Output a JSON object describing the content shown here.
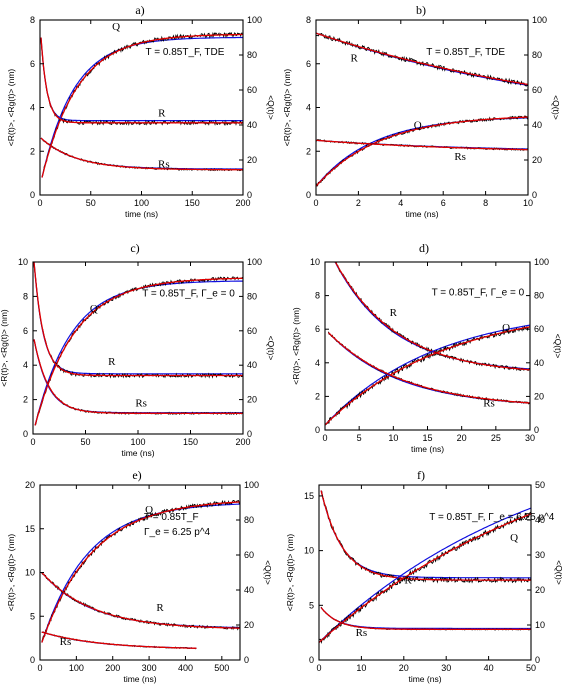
{
  "colors": {
    "data": "#000000",
    "fit": "#e00000",
    "model": "#1010e0",
    "frame": "#000000"
  },
  "chart_data": [
    {
      "panel": "a)",
      "type": "line",
      "xlabel": "time (ns)",
      "ylabel": "<R(t)>, <Rg(t)> (nm)",
      "y2label": "<Q(t)>",
      "xlim": [
        0,
        200
      ],
      "ylim": [
        0,
        8
      ],
      "y2lim": [
        0,
        100
      ],
      "xticks": [
        0,
        50,
        100,
        150,
        200
      ],
      "yticks": [
        0,
        2,
        4,
        6,
        8
      ],
      "y2ticks": [
        0,
        20,
        40,
        60,
        80,
        100
      ],
      "annotation": "T = 0.85T_F, TDE",
      "curve_labels": [
        {
          "text": "Q",
          "x": 75,
          "y": 105,
          "axis": "y2"
        },
        {
          "text": "R",
          "x": 120,
          "y": 3.6,
          "axis": "y"
        },
        {
          "text": "Rs",
          "x": 122,
          "y": 1.25,
          "axis": "y"
        }
      ],
      "series": [
        {
          "label": "Q",
          "axis": "y2",
          "kind": "noisy",
          "model": "rise",
          "t0": 2,
          "y0": 10,
          "yinf": 92,
          "tau": 35,
          "noise": 1.2,
          "xmax": 200
        },
        {
          "label": "R",
          "axis": "y",
          "kind": "noisy",
          "model": "decay",
          "t0": 1,
          "y0": 7.2,
          "yinf": 3.3,
          "tau": 6,
          "noise": 0.08,
          "xmax": 200
        },
        {
          "label": "Rs",
          "axis": "y",
          "kind": "noisy",
          "model": "decay",
          "t0": 1,
          "y0": 2.6,
          "yinf": 1.15,
          "tau": 35,
          "noise": 0.04,
          "xmax": 200
        }
      ]
    },
    {
      "panel": "b)",
      "type": "line",
      "xlabel": "time (ns)",
      "ylabel": "<R(t)>, <Rg(t)> (nm)",
      "y2label": "<Q(t)>",
      "xlim": [
        0,
        10
      ],
      "ylim": [
        0,
        8
      ],
      "y2lim": [
        0,
        100
      ],
      "xticks": [
        0,
        2,
        4,
        6,
        8,
        10
      ],
      "yticks": [
        0,
        2,
        4,
        6,
        8
      ],
      "y2ticks": [
        0,
        20,
        40,
        60,
        80,
        100
      ],
      "annotation": "T = 0.85T_F, TDE",
      "curve_labels": [
        {
          "text": "R",
          "x": 1.8,
          "y": 6.1,
          "axis": "y"
        },
        {
          "text": "Q",
          "x": 4.8,
          "y": 38,
          "axis": "y2"
        },
        {
          "text": "Rs",
          "x": 6.8,
          "y": 1.6,
          "axis": "y"
        }
      ],
      "series": [
        {
          "label": "R",
          "axis": "y",
          "kind": "noisy",
          "model": "decay",
          "t0": 0,
          "y0": 7.4,
          "yinf": 2.8,
          "tau": 14,
          "noise": 0.1,
          "xmax": 10
        },
        {
          "label": "Q",
          "axis": "y2",
          "kind": "noisy",
          "model": "rise",
          "t0": 0,
          "y0": 5,
          "yinf": 46,
          "tau": 3,
          "noise": 0.8,
          "xmax": 10
        },
        {
          "label": "Rs",
          "axis": "y",
          "kind": "noisy",
          "model": "decay",
          "t0": 0,
          "y0": 2.5,
          "yinf": 1.9,
          "tau": 8,
          "noise": 0.04,
          "xmax": 10
        }
      ]
    },
    {
      "panel": "c)",
      "type": "line",
      "xlabel": "time (ns)",
      "ylabel": "<R(t)>, <Rg(t)> (nm)",
      "y2label": "<Q(t)>",
      "xlim": [
        0,
        200
      ],
      "ylim": [
        0,
        10
      ],
      "y2lim": [
        0,
        100
      ],
      "xticks": [
        0,
        50,
        100,
        150,
        200
      ],
      "yticks": [
        0,
        2,
        4,
        6,
        8,
        10
      ],
      "y2ticks": [
        0,
        20,
        40,
        60,
        80,
        100
      ],
      "annotation": "T = 0.85T_F, Γ_e = 0",
      "curve_labels": [
        {
          "text": "Q",
          "x": 58,
          "y": 71,
          "axis": "y2"
        },
        {
          "text": "R",
          "x": 75,
          "y": 4.0,
          "axis": "y"
        },
        {
          "text": "Rs",
          "x": 103,
          "y": 1.6,
          "axis": "y"
        }
      ],
      "series": [
        {
          "label": "Q",
          "axis": "y2",
          "kind": "noisy",
          "model": "rise",
          "t0": 2,
          "y0": 5,
          "yinf": 91,
          "tau": 38,
          "noise": 1.0,
          "xmax": 200
        },
        {
          "label": "R",
          "axis": "y",
          "kind": "noisy",
          "model": "decay",
          "t0": 1,
          "y0": 10,
          "yinf": 3.4,
          "tau": 9,
          "noise": 0.1,
          "xmax": 200
        },
        {
          "label": "Rs",
          "axis": "y",
          "kind": "noisy",
          "model": "decay",
          "t0": 1,
          "y0": 5.5,
          "yinf": 1.2,
          "tau": 14,
          "noise": 0.05,
          "xmax": 200
        }
      ]
    },
    {
      "panel": "d)",
      "type": "line",
      "xlabel": "time (ns)",
      "ylabel": "<R(t)>, <Rg(t)> (nm)",
      "y2label": "<Q(t)>",
      "xlim": [
        0,
        30
      ],
      "ylim": [
        0,
        10
      ],
      "y2lim": [
        0,
        100
      ],
      "xticks": [
        0,
        5,
        10,
        15,
        20,
        25,
        30
      ],
      "yticks": [
        0,
        2,
        4,
        6,
        8,
        10
      ],
      "y2ticks": [
        0,
        20,
        40,
        60,
        80,
        100
      ],
      "annotation": "T = 0.85T_F, Γ_e = 0",
      "curve_labels": [
        {
          "text": "R",
          "x": 10,
          "y": 6.8,
          "axis": "y"
        },
        {
          "text": "Q",
          "x": 26.5,
          "y": 59,
          "axis": "y2"
        },
        {
          "text": "Rs",
          "x": 24,
          "y": 1.4,
          "axis": "y"
        }
      ],
      "series": [
        {
          "label": "R",
          "axis": "y",
          "kind": "noisy",
          "model": "decay",
          "t0": 0.5,
          "y0": 10.8,
          "yinf": 3.3,
          "tau": 9,
          "noise": 0.1,
          "xmax": 30
        },
        {
          "label": "Q",
          "axis": "y2",
          "kind": "noisy",
          "model": "rise",
          "t0": 0,
          "y0": 3,
          "yinf": 75,
          "tau": 18,
          "noise": 1.5,
          "xmax": 30
        },
        {
          "label": "Rs",
          "axis": "y",
          "kind": "noisy",
          "model": "decay",
          "t0": 0.5,
          "y0": 5.8,
          "yinf": 1.3,
          "tau": 11,
          "noise": 0.06,
          "xmax": 30
        }
      ]
    },
    {
      "panel": "e)",
      "type": "line",
      "xlabel": "time (ns)",
      "ylabel": "<R(t)>, <Rg(t)> (nm)",
      "y2label": "<Q(t)>",
      "xlim": [
        0,
        550
      ],
      "ylim": [
        0,
        20
      ],
      "y2lim": [
        0,
        100
      ],
      "xticks": [
        0,
        100,
        200,
        300,
        400,
        500
      ],
      "yticks": [
        0,
        5,
        10,
        15,
        20
      ],
      "y2ticks": [
        0,
        20,
        40,
        60,
        80,
        100
      ],
      "annotation": "T = 0.85T_F",
      "annotation2": "Γ_e = 6.25 p^4",
      "curve_labels": [
        {
          "text": "Q",
          "x": 300,
          "y": 84,
          "axis": "y2"
        },
        {
          "text": "R",
          "x": 330,
          "y": 5.6,
          "axis": "y"
        },
        {
          "text": "Rs",
          "x": 70,
          "y": 1.7,
          "axis": "y"
        }
      ],
      "series": [
        {
          "label": "Q",
          "axis": "y2",
          "kind": "noisy",
          "model": "rise",
          "t0": 5,
          "y0": 10,
          "yinf": 92,
          "tau": 140,
          "noise": 1.2,
          "xmax": 550
        },
        {
          "label": "R",
          "axis": "y",
          "kind": "noisy",
          "model": "decay",
          "t0": 5,
          "y0": 10,
          "yinf": 3.5,
          "tau": 140,
          "noise": 0.15,
          "xmax": 550
        },
        {
          "label": "Rs",
          "axis": "y",
          "kind": "noisy",
          "model": "decay",
          "t0": 5,
          "y0": 3.2,
          "yinf": 1.2,
          "tau": 160,
          "noise": 0.06,
          "xmax": 430
        }
      ]
    },
    {
      "panel": "f)",
      "type": "line",
      "xlabel": "time (ns)",
      "ylabel": "<R(t)>, <Rg(t)> (nm)",
      "y2label": "<Q(t)>",
      "xlim": [
        0,
        50
      ],
      "ylim": [
        0,
        16
      ],
      "y2lim": [
        0,
        50
      ],
      "xticks": [
        0,
        10,
        20,
        30,
        40,
        50
      ],
      "yticks": [
        0,
        5,
        10,
        15
      ],
      "y2ticks": [
        0,
        10,
        20,
        30,
        40,
        50
      ],
      "annotation": "T = 0.85T_F, Γ_e = 6.25 p^4",
      "curve_labels": [
        {
          "text": "Q",
          "x": 46,
          "y": 34,
          "axis": "y2"
        },
        {
          "text": "R",
          "x": 21,
          "y": 7.0,
          "axis": "y"
        },
        {
          "text": "Rs",
          "x": 10,
          "y": 2.2,
          "axis": "y"
        }
      ],
      "series": [
        {
          "label": "R",
          "axis": "y",
          "kind": "noisy",
          "model": "decay",
          "t0": 0.5,
          "y0": 15.5,
          "yinf": 7.3,
          "tau": 5,
          "noise": 0.2,
          "xmax": 50
        },
        {
          "label": "Q",
          "axis": "y2",
          "kind": "noisy",
          "model": "rise",
          "t0": 0,
          "y0": 5,
          "yinf": 70,
          "tau": 60,
          "noise": 0.8,
          "xmax": 50
        },
        {
          "label": "Rs",
          "axis": "y",
          "kind": "noisy",
          "model": "decay",
          "t0": 0.5,
          "y0": 4.8,
          "yinf": 2.8,
          "tau": 4,
          "noise": 0.05,
          "xmax": 50
        }
      ]
    }
  ]
}
